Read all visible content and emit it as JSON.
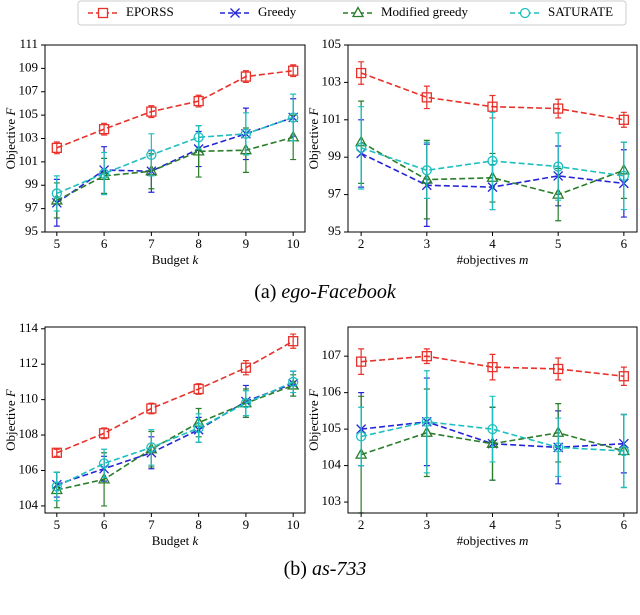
{
  "chart_data": [
    {
      "type": "line",
      "xlabel": "Budget",
      "xlabel_symbol": "k",
      "ylabel": "Objective",
      "ylabel_symbol": "F",
      "x": [
        5,
        6,
        7,
        8,
        9,
        10
      ],
      "xlim": [
        4.75,
        10.25
      ],
      "xticks": [
        5,
        6,
        7,
        8,
        9,
        10
      ],
      "ylim": [
        95,
        111
      ],
      "yticks": [
        95,
        97,
        99,
        101,
        103,
        105,
        107,
        109,
        111
      ],
      "series": [
        {
          "name": "EPORSS",
          "color": "#e8312a",
          "marker": "square",
          "values": [
            102.2,
            103.8,
            105.3,
            106.2,
            108.3,
            108.8
          ],
          "errors": [
            0.5,
            0.5,
            0.5,
            0.5,
            0.5,
            0.5
          ]
        },
        {
          "name": "Greedy",
          "color": "#2424d8",
          "marker": "x",
          "values": [
            97.5,
            100.3,
            100.2,
            102.1,
            103.4,
            104.8
          ],
          "errors": [
            2.0,
            2.0,
            1.8,
            1.5,
            2.2,
            1.6
          ]
        },
        {
          "name": "Modified greedy",
          "color": "#2a7d2a",
          "marker": "triangle",
          "values": [
            97.7,
            99.8,
            100.2,
            101.9,
            102.0,
            103.1
          ],
          "errors": [
            1.5,
            1.5,
            1.5,
            2.2,
            1.9,
            1.9
          ]
        },
        {
          "name": "SATURATE",
          "color": "#1fbfbf",
          "marker": "circle",
          "values": [
            98.3,
            100.0,
            101.6,
            103.1,
            103.4,
            104.8
          ],
          "errors": [
            1.5,
            1.8,
            1.8,
            1.0,
            1.8,
            2.0
          ]
        }
      ]
    },
    {
      "type": "line",
      "xlabel": "#objectives",
      "xlabel_symbol": "m",
      "ylabel": "Objective",
      "ylabel_symbol": "F",
      "x": [
        2,
        3,
        4,
        5,
        6
      ],
      "xlim": [
        1.8,
        6.2
      ],
      "xticks": [
        2,
        3,
        4,
        5,
        6
      ],
      "ylim": [
        95,
        105
      ],
      "yticks": [
        95,
        97,
        99,
        101,
        103,
        105
      ],
      "series": [
        {
          "name": "EPORSS",
          "color": "#e8312a",
          "marker": "square",
          "values": [
            103.5,
            102.2,
            101.7,
            101.6,
            101.0
          ],
          "errors": [
            0.6,
            0.6,
            0.6,
            0.5,
            0.4
          ]
        },
        {
          "name": "Greedy",
          "color": "#2424d8",
          "marker": "x",
          "values": [
            99.2,
            97.5,
            97.4,
            98.0,
            97.6
          ],
          "errors": [
            1.8,
            2.2,
            1.2,
            1.6,
            1.8
          ]
        },
        {
          "name": "Modified greedy",
          "color": "#2a7d2a",
          "marker": "triangle",
          "values": [
            99.8,
            97.8,
            97.9,
            97.0,
            98.3
          ],
          "errors": [
            2.2,
            2.1,
            1.3,
            1.4,
            1.5
          ]
        },
        {
          "name": "SATURATE",
          "color": "#1fbfbf",
          "marker": "circle",
          "values": [
            99.5,
            98.3,
            98.8,
            98.5,
            98.0
          ],
          "errors": [
            2.2,
            1.5,
            2.6,
            1.8,
            1.8
          ]
        }
      ]
    },
    {
      "type": "line",
      "xlabel": "Budget",
      "xlabel_symbol": "k",
      "ylabel": "Objective",
      "ylabel_symbol": "F",
      "x": [
        5,
        6,
        7,
        8,
        9,
        10
      ],
      "xlim": [
        4.75,
        10.25
      ],
      "xticks": [
        5,
        6,
        7,
        8,
        9,
        10
      ],
      "ylim": [
        103.6,
        114.1
      ],
      "yticks": [
        104,
        106,
        108,
        110,
        112,
        114
      ],
      "series": [
        {
          "name": "EPORSS",
          "color": "#e8312a",
          "marker": "square",
          "values": [
            107.0,
            108.1,
            109.5,
            110.6,
            111.8,
            113.3
          ],
          "errors": [
            0.2,
            0.3,
            0.3,
            0.3,
            0.4,
            0.4
          ]
        },
        {
          "name": "Greedy",
          "color": "#2424d8",
          "marker": "x",
          "values": [
            105.2,
            106.1,
            107.0,
            108.3,
            109.9,
            110.9
          ],
          "errors": [
            0.7,
            0.7,
            0.9,
            0.7,
            0.9,
            0.7
          ]
        },
        {
          "name": "Modified greedy",
          "color": "#2a7d2a",
          "marker": "triangle",
          "values": [
            104.9,
            105.5,
            107.2,
            108.7,
            109.8,
            110.8
          ],
          "errors": [
            1.0,
            1.5,
            1.0,
            0.8,
            0.8,
            0.6
          ]
        },
        {
          "name": "SATURATE",
          "color": "#1fbfbf",
          "marker": "circle",
          "values": [
            105.1,
            106.4,
            107.3,
            108.4,
            109.8,
            111.0
          ],
          "errors": [
            0.8,
            0.8,
            1.0,
            0.8,
            0.7,
            0.6
          ]
        }
      ]
    },
    {
      "type": "line",
      "xlabel": "#objectives",
      "xlabel_symbol": "m",
      "ylabel": "Objective",
      "ylabel_symbol": "F",
      "x": [
        2,
        3,
        4,
        5,
        6
      ],
      "xlim": [
        1.8,
        6.2
      ],
      "xticks": [
        2,
        3,
        4,
        5,
        6
      ],
      "ylim": [
        102.7,
        107.8
      ],
      "yticks": [
        103,
        104,
        105,
        106,
        107
      ],
      "series": [
        {
          "name": "EPORSS",
          "color": "#e8312a",
          "marker": "square",
          "values": [
            106.85,
            107.0,
            106.7,
            106.65,
            106.45
          ],
          "errors": [
            0.35,
            0.2,
            0.35,
            0.3,
            0.25
          ]
        },
        {
          "name": "Greedy",
          "color": "#2424d8",
          "marker": "x",
          "values": [
            105.0,
            105.2,
            104.6,
            104.5,
            104.6
          ],
          "errors": [
            1.0,
            1.2,
            1.0,
            1.0,
            0.8
          ]
        },
        {
          "name": "Modified greedy",
          "color": "#2a7d2a",
          "marker": "triangle",
          "values": [
            104.3,
            104.9,
            104.6,
            104.9,
            104.4
          ],
          "errors": [
            1.6,
            1.2,
            1.0,
            0.8,
            1.0
          ]
        },
        {
          "name": "SATURATE",
          "color": "#1fbfbf",
          "marker": "circle",
          "values": [
            104.8,
            105.2,
            105.0,
            104.5,
            104.4
          ],
          "errors": [
            0.8,
            1.4,
            0.9,
            0.8,
            1.0
          ]
        }
      ]
    }
  ],
  "subcaptions": [
    {
      "label": "(a)",
      "name": "ego-Facebook"
    },
    {
      "label": "(b)",
      "name": "as-733"
    }
  ]
}
